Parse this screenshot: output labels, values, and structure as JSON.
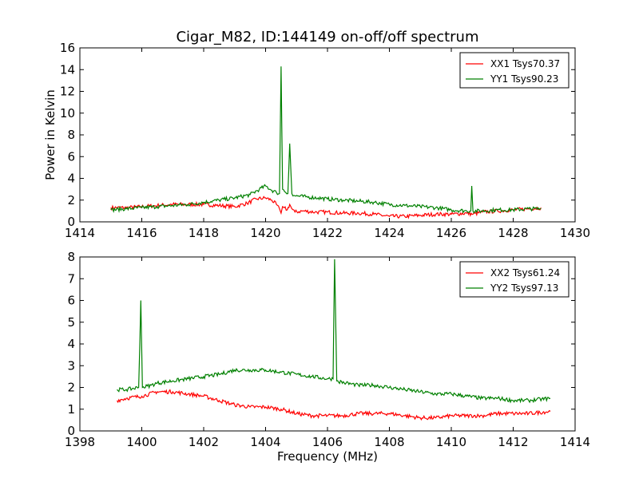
{
  "figure_title": "Cigar_M82, ID:144149 on-off/off spectrum",
  "shared_xlabel": "Frequency (MHz)",
  "colors": {
    "xx": "#ff0000",
    "yy": "#008000",
    "axes": "#000000",
    "background": "#ffffff"
  },
  "chart_data": [
    {
      "type": "line",
      "title": "Cigar_M82, ID:144149 on-off/off spectrum",
      "xlabel": "",
      "ylabel": "Power in Kelvin",
      "xlim": [
        1414,
        1430
      ],
      "ylim": [
        0,
        16
      ],
      "xticks": [
        1414,
        1416,
        1418,
        1420,
        1422,
        1424,
        1426,
        1428,
        1430
      ],
      "yticks": [
        0,
        2,
        4,
        6,
        8,
        10,
        12,
        14,
        16
      ],
      "legend_position": "top-right",
      "series": [
        {
          "name": "XX1 Tsys70.37",
          "color": "#ff0000",
          "x": [
            1415.0,
            1415.5,
            1416.0,
            1416.5,
            1417.0,
            1417.5,
            1418.0,
            1418.5,
            1419.0,
            1419.4,
            1419.7,
            1420.0,
            1420.2,
            1420.35,
            1420.45,
            1420.5,
            1420.55,
            1420.6,
            1420.7,
            1420.78,
            1420.85,
            1420.95,
            1421.2,
            1421.6,
            1422.0,
            1422.5,
            1423.0,
            1423.5,
            1424.0,
            1424.5,
            1425.0,
            1425.5,
            1426.0,
            1426.5,
            1426.7,
            1427.0,
            1427.5,
            1428.0,
            1428.5,
            1428.9
          ],
          "y": [
            1.3,
            1.3,
            1.4,
            1.5,
            1.6,
            1.6,
            1.6,
            1.5,
            1.4,
            1.7,
            2.1,
            2.2,
            2.0,
            1.6,
            1.2,
            0.8,
            1.4,
            1.3,
            1.1,
            1.6,
            1.2,
            0.9,
            1.0,
            0.9,
            0.9,
            0.8,
            0.8,
            0.7,
            0.5,
            0.5,
            0.6,
            0.7,
            0.7,
            0.8,
            0.7,
            0.9,
            1.0,
            1.1,
            1.2,
            1.3
          ]
        },
        {
          "name": "YY1 Tsys90.23",
          "color": "#008000",
          "x": [
            1415.0,
            1415.5,
            1416.0,
            1416.5,
            1417.0,
            1417.5,
            1418.0,
            1418.5,
            1419.0,
            1419.5,
            1419.8,
            1420.0,
            1420.2,
            1420.35,
            1420.45,
            1420.5,
            1420.55,
            1420.65,
            1420.72,
            1420.78,
            1420.85,
            1420.95,
            1421.3,
            1421.7,
            1422.0,
            1422.5,
            1423.0,
            1423.5,
            1424.0,
            1424.5,
            1425.0,
            1425.5,
            1426.0,
            1426.5,
            1426.63,
            1426.66,
            1426.7,
            1427.0,
            1427.5,
            1428.0,
            1428.5,
            1428.9
          ],
          "y": [
            1.1,
            1.2,
            1.3,
            1.4,
            1.5,
            1.6,
            1.8,
            2.0,
            2.2,
            2.5,
            3.0,
            3.3,
            2.9,
            2.7,
            2.6,
            14.3,
            3.0,
            2.7,
            2.6,
            7.2,
            2.6,
            2.4,
            2.3,
            2.2,
            2.1,
            2.0,
            1.9,
            1.8,
            1.6,
            1.5,
            1.4,
            1.3,
            1.1,
            1.0,
            1.0,
            3.3,
            1.0,
            1.0,
            1.1,
            1.1,
            1.2,
            1.2
          ]
        }
      ]
    },
    {
      "type": "line",
      "title": "",
      "xlabel": "Frequency (MHz)",
      "ylabel": "",
      "xlim": [
        1398,
        1414
      ],
      "ylim": [
        0,
        8
      ],
      "xticks": [
        1398,
        1400,
        1402,
        1404,
        1406,
        1408,
        1410,
        1412,
        1414
      ],
      "yticks": [
        0,
        1,
        2,
        3,
        4,
        5,
        6,
        7,
        8
      ],
      "legend_position": "top-right",
      "series": [
        {
          "name": "XX2 Tsys61.24",
          "color": "#ff0000",
          "x": [
            1399.2,
            1399.5,
            1400.0,
            1400.5,
            1401.0,
            1401.5,
            1402.0,
            1402.5,
            1403.0,
            1403.5,
            1404.0,
            1404.5,
            1405.0,
            1405.5,
            1406.0,
            1406.5,
            1407.0,
            1407.5,
            1408.0,
            1408.5,
            1409.0,
            1409.5,
            1410.0,
            1410.5,
            1411.0,
            1411.5,
            1412.0,
            1412.5,
            1413.2
          ],
          "y": [
            1.4,
            1.5,
            1.6,
            1.8,
            1.8,
            1.7,
            1.6,
            1.4,
            1.2,
            1.1,
            1.1,
            1.0,
            0.8,
            0.7,
            0.7,
            0.7,
            0.8,
            0.8,
            0.8,
            0.7,
            0.6,
            0.6,
            0.7,
            0.7,
            0.7,
            0.8,
            0.8,
            0.8,
            0.9
          ]
        },
        {
          "name": "YY2 Tsys97.13",
          "color": "#008000",
          "x": [
            1399.2,
            1399.5,
            1399.9,
            1399.97,
            1400.02,
            1400.3,
            1400.5,
            1401.0,
            1401.5,
            1402.0,
            1402.5,
            1403.0,
            1403.5,
            1404.0,
            1404.5,
            1405.0,
            1405.5,
            1406.0,
            1406.18,
            1406.23,
            1406.3,
            1406.6,
            1407.0,
            1407.5,
            1408.0,
            1408.5,
            1409.0,
            1409.5,
            1410.0,
            1410.5,
            1411.0,
            1411.5,
            1412.0,
            1412.5,
            1413.2
          ],
          "y": [
            1.9,
            1.9,
            2.0,
            6.0,
            2.0,
            2.1,
            2.2,
            2.3,
            2.4,
            2.5,
            2.6,
            2.8,
            2.8,
            2.8,
            2.7,
            2.6,
            2.5,
            2.4,
            2.4,
            7.9,
            2.3,
            2.2,
            2.1,
            2.1,
            2.0,
            1.9,
            1.8,
            1.7,
            1.7,
            1.6,
            1.5,
            1.5,
            1.4,
            1.4,
            1.5
          ]
        }
      ]
    }
  ]
}
